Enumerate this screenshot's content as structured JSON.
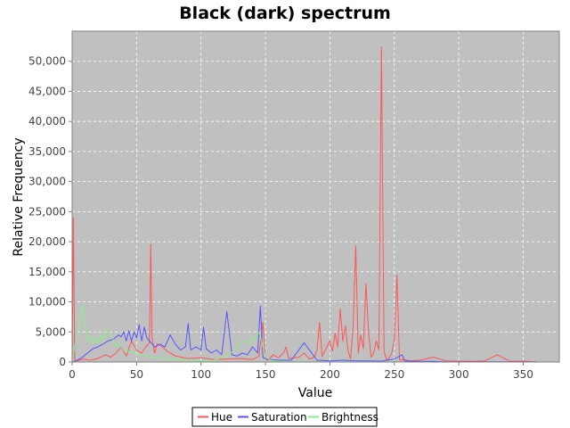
{
  "chart_data": {
    "type": "line",
    "title": "Black (dark) spectrum",
    "xlabel": "Value",
    "ylabel": "Relative Frequency",
    "xlim": [
      0,
      378
    ],
    "ylim": [
      0,
      55000
    ],
    "xticks": [
      0,
      50,
      100,
      150,
      200,
      250,
      300,
      350
    ],
    "yticks": [
      0,
      5000,
      10000,
      15000,
      20000,
      25000,
      30000,
      35000,
      40000,
      45000,
      50000
    ],
    "ytick_labels": [
      "0",
      "5,000",
      "10,000",
      "15,000",
      "20,000",
      "25,000",
      "30,000",
      "35,000",
      "40,000",
      "45,000",
      "50,000"
    ],
    "grid": true,
    "legend_position": "bottom",
    "background": "#c0c0c0",
    "series": [
      {
        "name": "Hue",
        "color": "#ff5555",
        "x": [
          0,
          1,
          2,
          4,
          8,
          14,
          20,
          26,
          30,
          34,
          38,
          42,
          46,
          50,
          54,
          57,
          60,
          61,
          62,
          64,
          66,
          70,
          74,
          80,
          90,
          100,
          110,
          120,
          130,
          140,
          145,
          148,
          150,
          152,
          156,
          160,
          164,
          166,
          168,
          172,
          176,
          180,
          184,
          188,
          190,
          192,
          194,
          196,
          200,
          202,
          204,
          206,
          208,
          210,
          212,
          214,
          216,
          218,
          220,
          222,
          224,
          226,
          228,
          230,
          232,
          234,
          236,
          238,
          240,
          242,
          244,
          246,
          248,
          250,
          252,
          254,
          258,
          262,
          270,
          280,
          290,
          300,
          310,
          320,
          330,
          340,
          350,
          360
        ],
        "y": [
          0,
          24000,
          300,
          200,
          500,
          300,
          600,
          1200,
          800,
          1500,
          2500,
          1000,
          3500,
          2000,
          1500,
          2500,
          3200,
          19600,
          4000,
          1500,
          3000,
          2500,
          1800,
          1000,
          600,
          700,
          400,
          500,
          600,
          400,
          1000,
          6600,
          500,
          300,
          1200,
          700,
          1500,
          2500,
          600,
          700,
          800,
          1500,
          500,
          800,
          2000,
          6600,
          900,
          1800,
          3500,
          1800,
          4800,
          2500,
          8800,
          3500,
          6000,
          2000,
          500,
          6000,
          19300,
          1500,
          4500,
          2200,
          13000,
          5000,
          800,
          1500,
          3500,
          2000,
          52400,
          1800,
          300,
          700,
          1500,
          3800,
          14400,
          300,
          400,
          200,
          300,
          800,
          200,
          150,
          100,
          200,
          1200,
          100,
          150,
          50
        ]
      },
      {
        "name": "Saturation",
        "color": "#5555ff",
        "x": [
          0,
          2,
          4,
          8,
          12,
          16,
          20,
          24,
          28,
          32,
          36,
          38,
          40,
          42,
          44,
          46,
          48,
          50,
          52,
          54,
          56,
          58,
          60,
          64,
          68,
          72,
          76,
          80,
          84,
          88,
          90,
          92,
          96,
          100,
          102,
          104,
          108,
          112,
          116,
          120,
          124,
          128,
          132,
          136,
          140,
          144,
          146,
          148,
          150,
          154,
          160,
          170,
          180,
          190,
          200,
          210,
          220,
          230,
          240,
          250,
          256,
          258,
          262,
          270,
          280,
          290,
          300,
          320,
          340,
          360
        ],
        "y": [
          0,
          100,
          300,
          800,
          1500,
          2200,
          2500,
          3000,
          3500,
          3800,
          4500,
          4200,
          5000,
          3500,
          5200,
          3500,
          5000,
          4000,
          6200,
          3500,
          5800,
          4000,
          3500,
          2500,
          3000,
          2500,
          4500,
          3000,
          2000,
          2500,
          6400,
          2000,
          2500,
          2000,
          5800,
          2200,
          1500,
          2000,
          1200,
          8400,
          1200,
          1000,
          1500,
          1200,
          2500,
          1500,
          9300,
          800,
          500,
          400,
          300,
          300,
          3200,
          300,
          200,
          300,
          200,
          200,
          150,
          500,
          1200,
          200,
          150,
          100,
          100,
          50,
          50,
          40,
          30,
          20
        ]
      },
      {
        "name": "Brightness",
        "color": "#88ee88",
        "x": [
          0,
          2,
          4,
          6,
          8,
          10,
          12,
          14,
          16,
          18,
          20,
          22,
          24,
          26,
          28,
          30,
          32,
          34,
          36,
          38,
          40,
          44,
          48,
          52,
          56,
          60,
          64,
          68,
          72,
          76,
          80,
          90,
          100,
          110,
          120,
          126,
          130,
          134,
          138,
          140,
          142,
          144,
          146,
          148,
          150,
          154,
          158,
          162,
          166,
          170,
          180,
          190,
          200,
          210,
          220,
          230,
          240,
          250,
          260,
          280,
          300,
          320,
          340,
          360
        ],
        "y": [
          0,
          2500,
          4500,
          7000,
          9500,
          6000,
          3500,
          4500,
          3000,
          4000,
          3200,
          4500,
          3500,
          5000,
          5500,
          4500,
          3500,
          2500,
          3000,
          2500,
          2000,
          1800,
          1500,
          1200,
          1000,
          900,
          800,
          700,
          600,
          500,
          400,
          300,
          200,
          300,
          1000,
          2000,
          3200,
          3500,
          3000,
          4200,
          3500,
          5000,
          4500,
          2500,
          800,
          300,
          150,
          100,
          80,
          60,
          40,
          30,
          20,
          20,
          15,
          10,
          10,
          10,
          5,
          5,
          5,
          5,
          5,
          5
        ]
      }
    ]
  }
}
